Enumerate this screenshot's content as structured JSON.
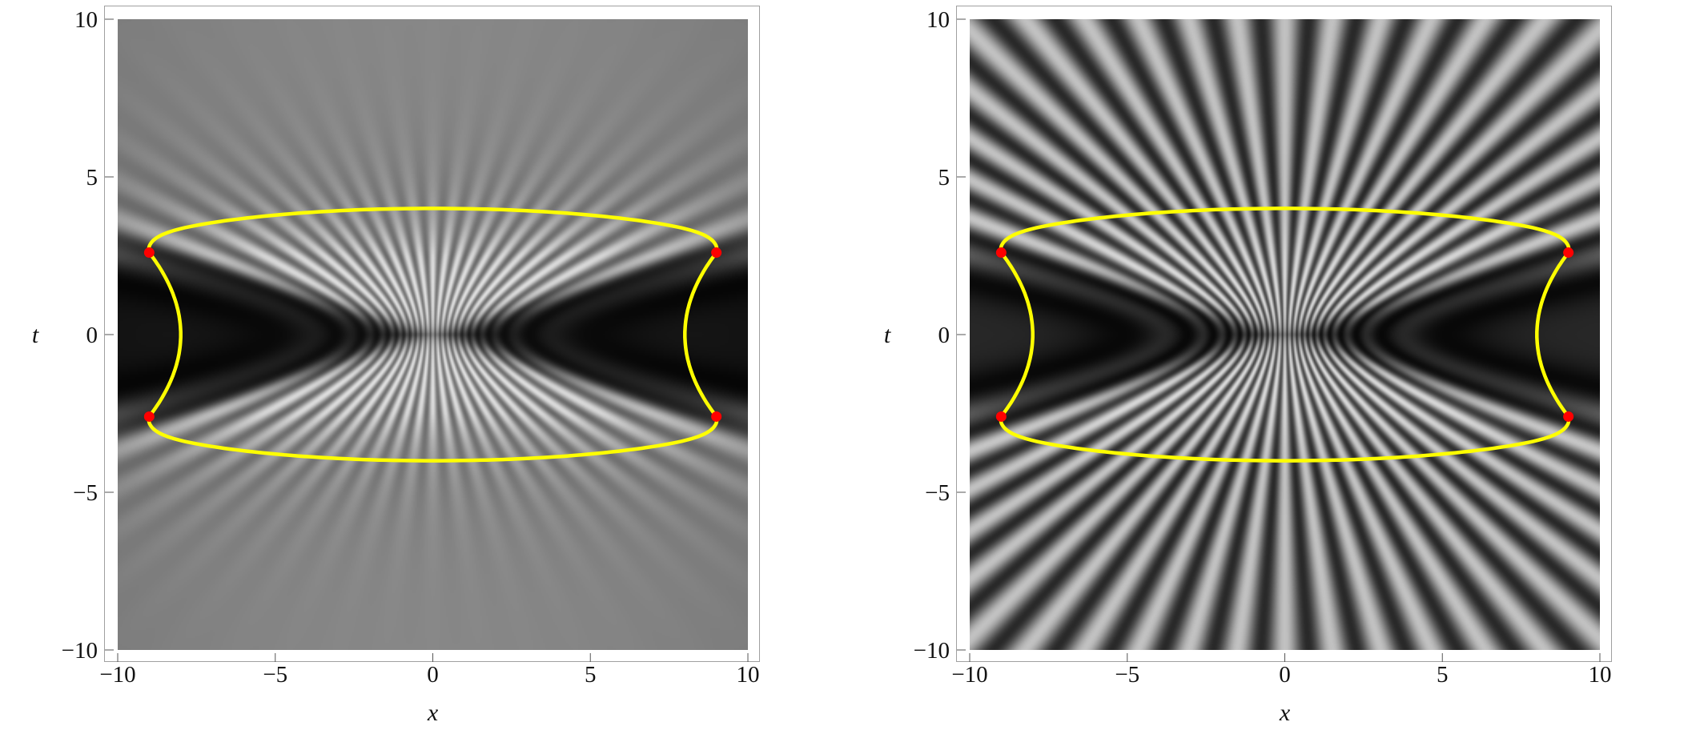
{
  "chart_data": [
    {
      "type": "heatmap",
      "colormap": "grayscale",
      "xlabel": "x",
      "ylabel": "t",
      "xlim": [
        -10,
        10
      ],
      "ylim": [
        -10,
        10
      ],
      "xticks": [
        -10,
        -5,
        0,
        5,
        10
      ],
      "yticks": [
        -10,
        -5,
        0,
        5,
        10
      ],
      "xtick_labels": [
        "−10",
        "−5",
        "0",
        "5",
        "10"
      ],
      "ytick_labels": [
        "−10",
        "−5",
        "0",
        "5",
        "10"
      ],
      "grid": false,
      "contrast": "low, fringes fade away from t = 0",
      "overlay_curve": {
        "color": "#ffff00",
        "top_t_max": 4,
        "side_x_min": 8,
        "corner_t": 2.6,
        "corner_x": 9
      },
      "marker_points": {
        "color": "#ff0000",
        "points": [
          [
            -9,
            2.6
          ],
          [
            9,
            2.6
          ],
          [
            -9,
            -2.6
          ],
          [
            9,
            -2.6
          ]
        ]
      }
    },
    {
      "type": "heatmap",
      "colormap": "grayscale",
      "xlabel": "x",
      "ylabel": "t",
      "xlim": [
        -10,
        10
      ],
      "ylim": [
        -10,
        10
      ],
      "xticks": [
        -10,
        -5,
        0,
        5,
        10
      ],
      "yticks": [
        -10,
        -5,
        0,
        5,
        10
      ],
      "xtick_labels": [
        "−10",
        "−5",
        "0",
        "5",
        "10"
      ],
      "ytick_labels": [
        "−10",
        "−5",
        "0",
        "5",
        "10"
      ],
      "grid": false,
      "contrast": "high, fringes extend over the whole domain",
      "overlay_curve": {
        "color": "#ffff00",
        "top_t_max": 4,
        "side_x_min": 8,
        "corner_t": 2.6,
        "corner_x": 9
      },
      "marker_points": {
        "color": "#ff0000",
        "points": [
          [
            -9,
            2.6
          ],
          [
            9,
            2.6
          ],
          [
            -9,
            -2.6
          ],
          [
            9,
            -2.6
          ]
        ]
      }
    }
  ]
}
